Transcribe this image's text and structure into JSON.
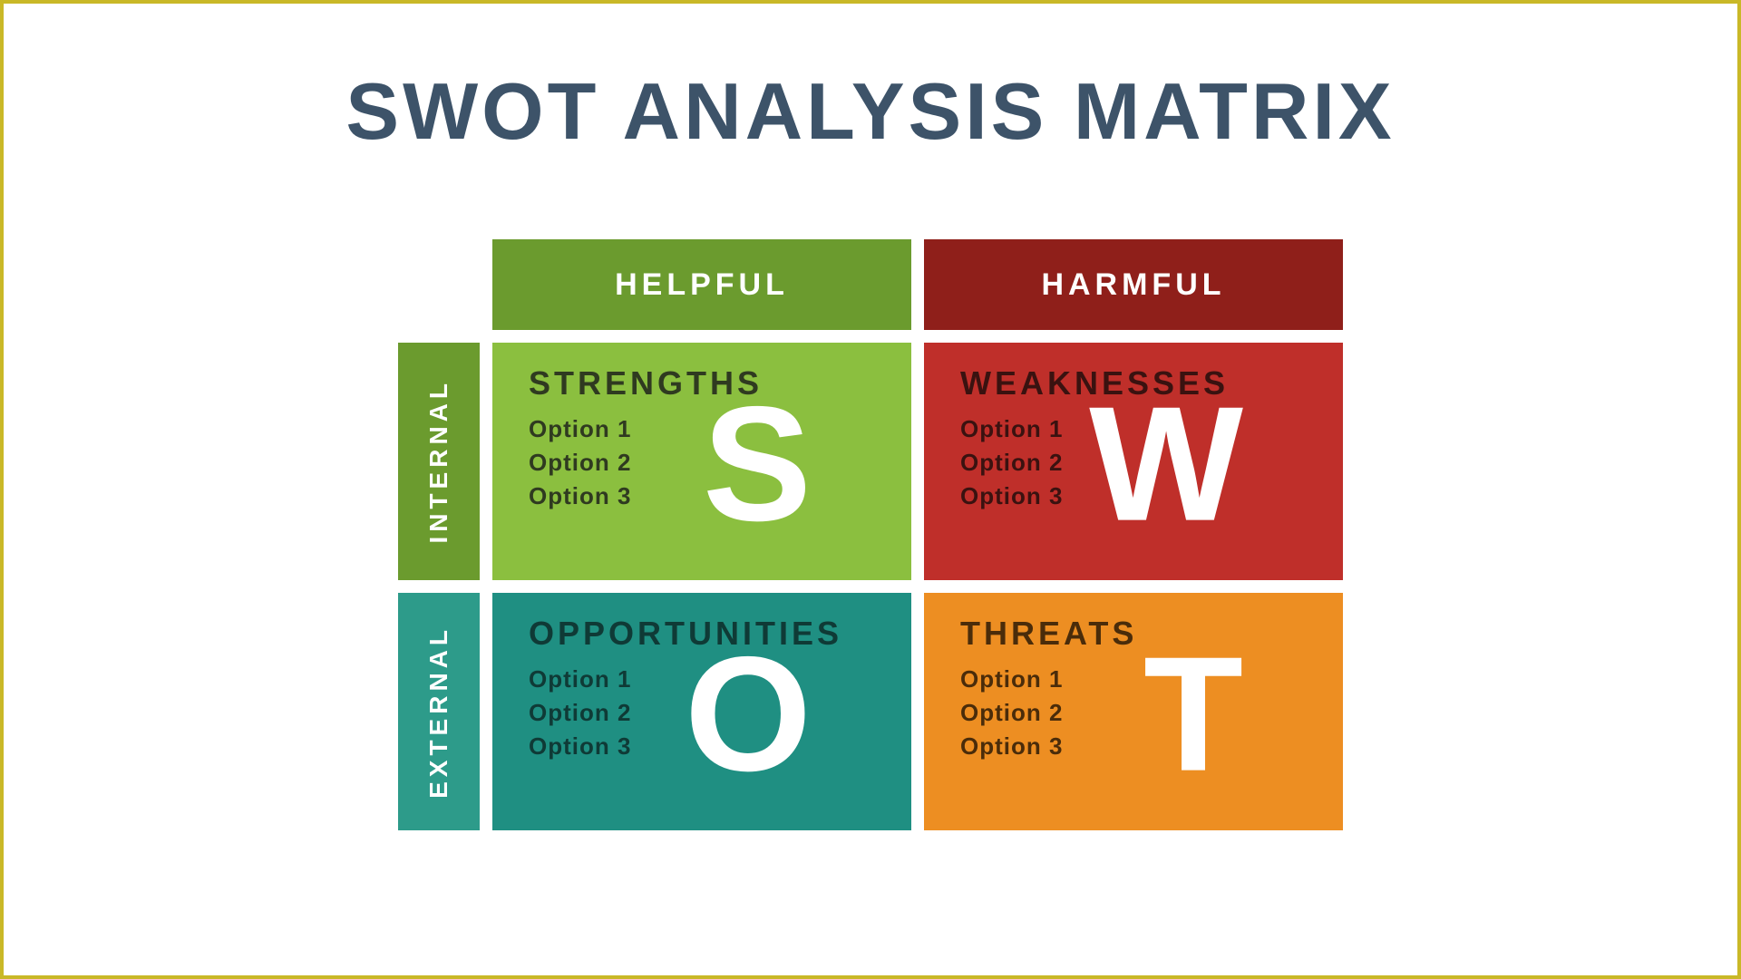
{
  "title": "SWOT ANALYSIS MATRIX",
  "title_color": "#3d5369",
  "border_color": "#c9b827",
  "columns": [
    {
      "label": "HELPFUL",
      "bg": "#6b9b2e"
    },
    {
      "label": "HARMFUL",
      "bg": "#8f1f1a"
    }
  ],
  "rows": [
    {
      "label": "INTERNAL",
      "bg": "#6b9b2e"
    },
    {
      "label": "EXTERNAL",
      "bg": "#2d9b8a"
    }
  ],
  "quadrants": [
    {
      "key": "strengths",
      "title": "STRENGTHS",
      "letter": "S",
      "bg": "#8bbf3f",
      "title_color": "#2f3a20",
      "opt_color": "#2f3a20",
      "options": [
        "Option 1",
        "Option 2",
        "Option 3"
      ]
    },
    {
      "key": "weaknesses",
      "title": "WEAKNESSES",
      "letter": "W",
      "bg": "#bf2f2a",
      "title_color": "#3a1210",
      "opt_color": "#3a1210",
      "options": [
        "Option 1",
        "Option 2",
        "Option 3"
      ]
    },
    {
      "key": "opportunities",
      "title": "OPPORTUNITIES",
      "letter": "O",
      "bg": "#1f8f82",
      "title_color": "#0f3a36",
      "opt_color": "#0f3a36",
      "options": [
        "Option 1",
        "Option 2",
        "Option 3"
      ]
    },
    {
      "key": "threats",
      "title": "THREATS",
      "letter": "T",
      "bg": "#ed8e22",
      "title_color": "#4a2c0a",
      "opt_color": "#4a2c0a",
      "options": [
        "Option 1",
        "Option 2",
        "Option 3"
      ]
    }
  ],
  "layout": {
    "quad_title_fontsize": 36,
    "quad_opt_fontsize": 26,
    "letter_fontsize": 180,
    "col_header_fontsize": 34,
    "row_header_fontsize": 28,
    "title_fontsize": 88
  }
}
